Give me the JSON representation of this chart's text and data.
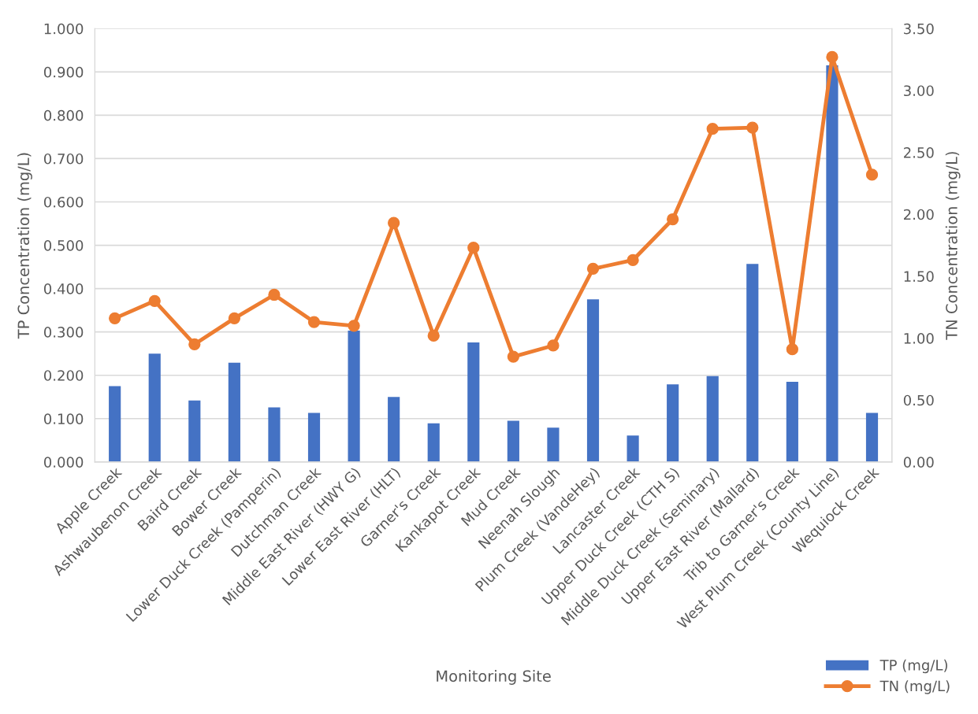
{
  "chart_data": {
    "type": "bar",
    "xlabel": "Monitoring Site",
    "ylabel": "TP Concentration (mg/L)",
    "y2label": "TN Concentration (mg/L)",
    "categories": [
      "Apple Creek",
      "Ashwaubenon Creek",
      "Baird Creek",
      "Bower Creek",
      "Lower Duck Creek (Pamperin)",
      "Dutchman Creek",
      "Middle East River (HWY G)",
      "Lower East River (HLT)",
      "Garner's Creek",
      "Kankapot Creek",
      "Mud Creek",
      "Neenah Slough",
      "Plum Creek (VandeHey)",
      "Lancaster Creek",
      "Upper Duck Creek (CTH S)",
      "Middle Duck Creek (Seminary)",
      "Upper East River (Mallard)",
      "Trib to Garner's Creek",
      "West Plum Creek (County Line)",
      "Wequiock Creek"
    ],
    "series": [
      {
        "name": "TP (mg/L)",
        "color": "#4472c4",
        "values": [
          0.175,
          0.25,
          0.142,
          0.229,
          0.126,
          0.113,
          0.303,
          0.15,
          0.089,
          0.276,
          0.095,
          0.079,
          0.375,
          0.061,
          0.179,
          0.198,
          0.457,
          0.185,
          0.915,
          0.113
        ]
      },
      {
        "name": "TN (mg/L)",
        "type": "line",
        "axis": "y2",
        "color": "#ed7d31",
        "marker": "circle",
        "line_style": "solid",
        "values": [
          1.16,
          1.3,
          0.95,
          1.16,
          1.35,
          1.13,
          1.1,
          1.93,
          1.02,
          1.73,
          0.85,
          0.94,
          1.56,
          1.63,
          1.96,
          2.69,
          2.7,
          0.91,
          3.27,
          2.32
        ]
      }
    ],
    "ylim": [
      0,
      1.0
    ],
    "yticks": [
      {
        "value": 0,
        "label": "0.000"
      },
      {
        "value": 0.1,
        "label": "0.100"
      },
      {
        "value": 0.2,
        "label": "0.200"
      },
      {
        "value": 0.3,
        "label": "0.300"
      },
      {
        "value": 0.4,
        "label": "0.400"
      },
      {
        "value": 0.5,
        "label": "0.500"
      },
      {
        "value": 0.6,
        "label": "0.600"
      },
      {
        "value": 0.7,
        "label": "0.700"
      },
      {
        "value": 0.8,
        "label": "0.800"
      },
      {
        "value": 0.9,
        "label": "0.900"
      },
      {
        "value": 1.0,
        "label": "1.000"
      }
    ],
    "y2lim": [
      0,
      3.5
    ],
    "y2ticks": [
      {
        "value": 0,
        "label": "0.00"
      },
      {
        "value": 0.5,
        "label": "0.50"
      },
      {
        "value": 1.0,
        "label": "1.00"
      },
      {
        "value": 1.5,
        "label": "1.50"
      },
      {
        "value": 2.0,
        "label": "2.00"
      },
      {
        "value": 2.5,
        "label": "2.50"
      },
      {
        "value": 3.0,
        "label": "3.00"
      },
      {
        "value": 3.5,
        "label": "3.50"
      }
    ],
    "grid": "y",
    "legend": "bottom right"
  }
}
